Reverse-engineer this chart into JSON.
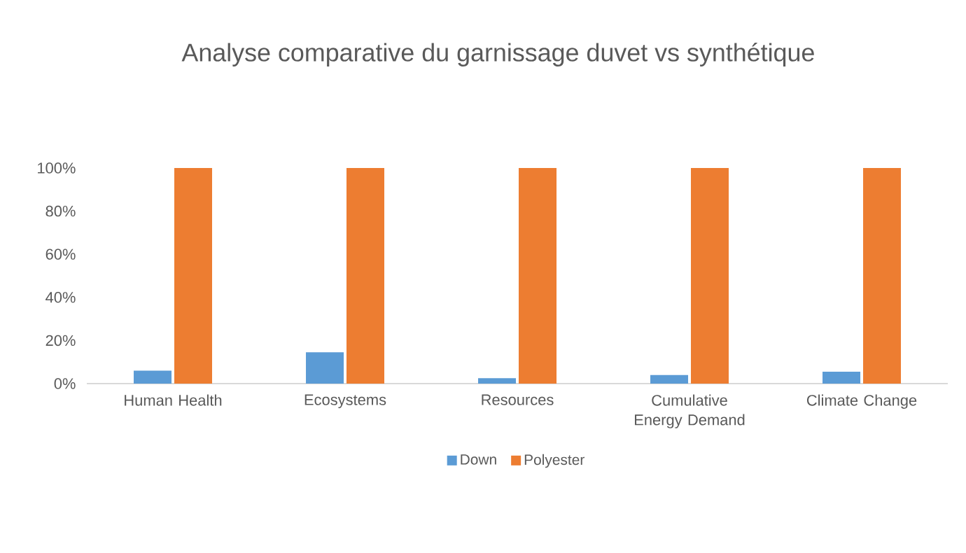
{
  "chart_data": {
    "type": "bar",
    "title": "Analyse comparative du garnissage duvet vs synthétique",
    "categories": [
      "Human Health",
      "Ecosystems",
      "Resources",
      "Cumulative Energy Demand",
      "Climate Change"
    ],
    "series": [
      {
        "name": "Down",
        "color": "#5b9bd5",
        "values": [
          6,
          14.5,
          2.5,
          4,
          5.5
        ]
      },
      {
        "name": "Polyester",
        "color": "#ed7d31",
        "values": [
          100,
          100,
          100,
          100,
          100
        ]
      }
    ],
    "ylim": [
      0,
      100
    ],
    "yticks": [
      {
        "value": 0,
        "label": "0%"
      },
      {
        "value": 20,
        "label": "20%"
      },
      {
        "value": 40,
        "label": "40%"
      },
      {
        "value": 60,
        "label": "60%"
      },
      {
        "value": 80,
        "label": "80%"
      },
      {
        "value": 100,
        "label": "100%"
      }
    ],
    "legend": "bottom"
  }
}
